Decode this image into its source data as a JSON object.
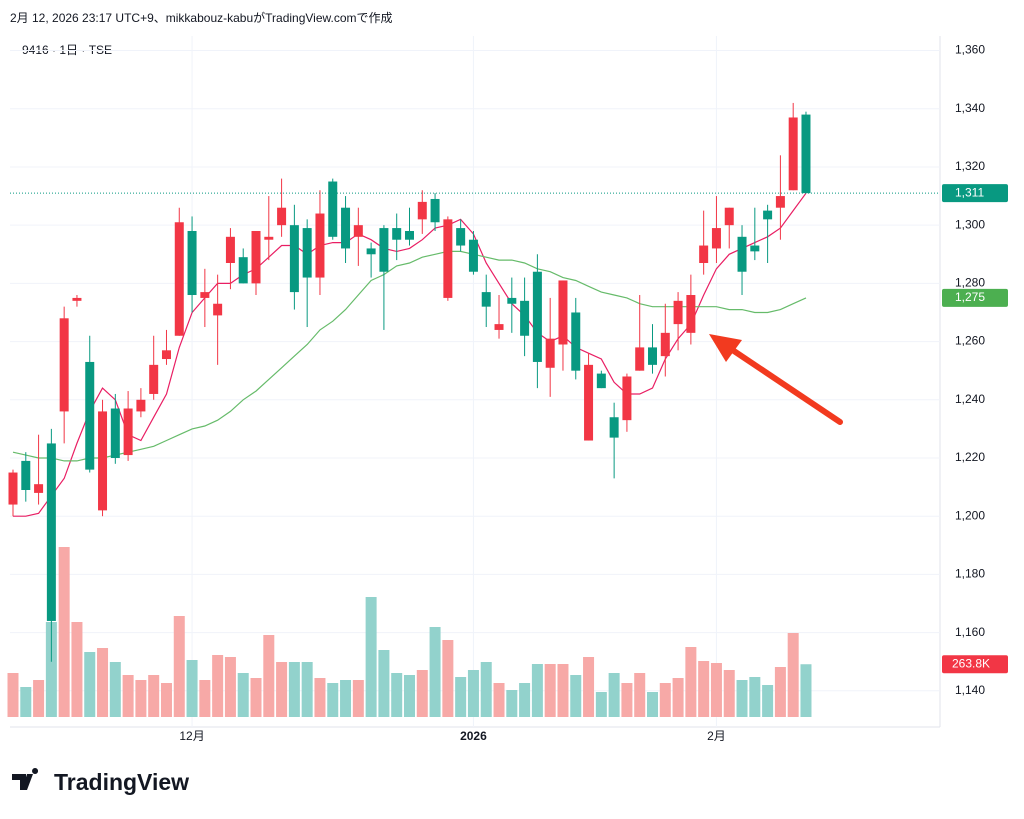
{
  "header": "2月 12, 2026 23:17 UTC+9、mikkabouz-kabuがTradingView.comで作成",
  "logo": "TradingView",
  "chart_data": {
    "type": "candlestick",
    "title": "9416 · 1日 · TSE",
    "up_color": "#f23645",
    "down_color": "#089981",
    "volume_up_color": "#f7a9a7",
    "volume_down_color": "#92d2cc",
    "ylim": [
      1131,
      1365
    ],
    "yticks": [
      {
        "value": 1140,
        "label": "1,140"
      },
      {
        "value": 1160,
        "label": "1,160"
      },
      {
        "value": 1180,
        "label": "1,180"
      },
      {
        "value": 1200,
        "label": "1,200"
      },
      {
        "value": 1220,
        "label": "1,220"
      },
      {
        "value": 1240,
        "label": "1,240"
      },
      {
        "value": 1260,
        "label": "1,260"
      },
      {
        "value": 1280,
        "label": "1,280"
      },
      {
        "value": 1300,
        "label": "1,300"
      },
      {
        "value": 1320,
        "label": "1,320"
      },
      {
        "value": 1340,
        "label": "1,340"
      },
      {
        "value": 1360,
        "label": "1,360"
      }
    ],
    "xticks": [
      {
        "value": 14,
        "label": "12月"
      },
      {
        "value": 36,
        "label": "2026"
      },
      {
        "value": 55,
        "label": "2月"
      }
    ],
    "grid": true,
    "candles": [
      [
        1204,
        1216,
        1200,
        1215
      ],
      [
        1219,
        1222,
        1205,
        1209
      ],
      [
        1208,
        1228,
        1204,
        1211
      ],
      [
        1225,
        1230,
        1150,
        1164
      ],
      [
        1236,
        1272,
        1225,
        1268
      ],
      [
        1274,
        1276,
        1272,
        1275
      ],
      [
        1253,
        1262,
        1215,
        1216
      ],
      [
        1202,
        1240,
        1200,
        1236
      ],
      [
        1237,
        1242,
        1218,
        1220
      ],
      [
        1221,
        1243,
        1219,
        1237
      ],
      [
        1236,
        1244,
        1234,
        1240
      ],
      [
        1242,
        1262,
        1240,
        1252
      ],
      [
        1254,
        1264,
        1252,
        1257
      ],
      [
        1262,
        1306,
        1262,
        1301
      ],
      [
        1298,
        1303,
        1270,
        1276
      ],
      [
        1275,
        1285,
        1265,
        1277
      ],
      [
        1269,
        1283,
        1252,
        1273
      ],
      [
        1287,
        1299,
        1278,
        1296
      ],
      [
        1289,
        1292,
        1280,
        1280
      ],
      [
        1280,
        1298,
        1276,
        1298
      ],
      [
        1295,
        1310,
        1288,
        1296
      ],
      [
        1300,
        1316,
        1296,
        1306
      ],
      [
        1300,
        1307,
        1271,
        1277
      ],
      [
        1299,
        1302,
        1265,
        1282
      ],
      [
        1282,
        1312,
        1276,
        1304
      ],
      [
        1315,
        1316,
        1295,
        1296
      ],
      [
        1306,
        1310,
        1287,
        1292
      ],
      [
        1296,
        1306,
        1286,
        1300
      ],
      [
        1292,
        1294,
        1282,
        1290
      ],
      [
        1299,
        1300,
        1264,
        1284
      ],
      [
        1299,
        1304,
        1288,
        1295
      ],
      [
        1298,
        1306,
        1293,
        1295
      ],
      [
        1302,
        1312,
        1297,
        1308
      ],
      [
        1309,
        1311,
        1298,
        1301
      ],
      [
        1275,
        1303,
        1274,
        1302
      ],
      [
        1299,
        1302,
        1291,
        1293
      ],
      [
        1295,
        1298,
        1283,
        1284
      ],
      [
        1277,
        1283,
        1265,
        1272
      ],
      [
        1264,
        1276,
        1261,
        1266
      ],
      [
        1275,
        1282,
        1263,
        1273
      ],
      [
        1274,
        1282,
        1255,
        1262
      ],
      [
        1284,
        1290,
        1244,
        1253
      ],
      [
        1251,
        1275,
        1241,
        1261
      ],
      [
        1259,
        1281,
        1250,
        1281
      ],
      [
        1270,
        1275,
        1247,
        1250
      ],
      [
        1226,
        1256,
        1226,
        1252
      ],
      [
        1249,
        1250,
        1244,
        1244
      ],
      [
        1234,
        1239,
        1213,
        1227
      ],
      [
        1233,
        1249,
        1229,
        1248
      ],
      [
        1250,
        1276,
        1250,
        1258
      ],
      [
        1258,
        1266,
        1249,
        1252
      ],
      [
        1255,
        1273,
        1248,
        1263
      ],
      [
        1266,
        1277,
        1257,
        1274
      ],
      [
        1263,
        1283,
        1259,
        1276
      ],
      [
        1287,
        1305,
        1283,
        1293
      ],
      [
        1292,
        1310,
        1287,
        1299
      ],
      [
        1300,
        1306,
        1292,
        1306
      ],
      [
        1296,
        1300,
        1276,
        1284
      ],
      [
        1293,
        1306,
        1288,
        1291
      ],
      [
        1305,
        1307,
        1287,
        1302
      ],
      [
        1306,
        1324,
        1295,
        1310
      ],
      [
        1312,
        1342,
        1312,
        1337
      ],
      [
        1338,
        1339,
        1311,
        1311
      ]
    ],
    "moving_averages": [
      {
        "color": "#e91e63",
        "values": [
          1200,
          1200,
          1201,
          1207,
          1213,
          1225,
          1236,
          1244,
          1240,
          1228,
          1226,
          1234,
          1242,
          1258,
          1270,
          1275,
          1280,
          1280,
          1283,
          1285,
          1289,
          1293,
          1293,
          1290,
          1293,
          1294,
          1294,
          1297,
          1295,
          1292,
          1291,
          1292,
          1295,
          1299,
          1300,
          1302,
          1297,
          1287,
          1280,
          1273,
          1269,
          1263,
          1260,
          1262,
          1258,
          1256,
          1254,
          1246,
          1242,
          1242,
          1244,
          1254,
          1261,
          1266,
          1276,
          1285,
          1290,
          1292,
          1294,
          1296,
          1299,
          1305,
          1311
        ]
      },
      {
        "color": "#66bb6a",
        "values": [
          1222,
          1221,
          1220,
          1220,
          1219,
          1219,
          1220,
          1220,
          1221,
          1222,
          1223,
          1224,
          1226,
          1228,
          1230,
          1231,
          1233,
          1236,
          1240,
          1243,
          1247,
          1251,
          1255,
          1259,
          1264,
          1267,
          1271,
          1276,
          1281,
          1283,
          1286,
          1287,
          1289,
          1290,
          1291,
          1291,
          1290,
          1289,
          1288,
          1288,
          1287,
          1285,
          1284,
          1282,
          1281,
          1279,
          1277,
          1276,
          1275,
          1273,
          1272,
          1272,
          1272,
          1272,
          1272,
          1272,
          1271,
          1271,
          1270,
          1270,
          1271,
          1273,
          1275
        ]
      }
    ],
    "volume": {
      "ylim": [
        0,
        850000
      ],
      "values": [
        220000,
        150000,
        185000,
        475000,
        850000,
        475000,
        325000,
        345000,
        275000,
        210000,
        185000,
        210000,
        170000,
        505000,
        285000,
        185000,
        310000,
        300000,
        220000,
        195000,
        410000,
        275000,
        275000,
        275000,
        195000,
        170000,
        185000,
        185000,
        600000,
        335000,
        220000,
        210000,
        235000,
        450000,
        385000,
        200000,
        235000,
        275000,
        170000,
        135000,
        170000,
        265000,
        265000,
        265000,
        210000,
        300000,
        125000,
        220000,
        170000,
        220000,
        125000,
        170000,
        195000,
        350000,
        280000,
        270000,
        235000,
        185000,
        200000,
        160000,
        250000,
        420000,
        263800
      ]
    },
    "price_tags": [
      {
        "value": 1311,
        "label": "1,311",
        "color": "#089981"
      },
      {
        "value": 1275,
        "label": "1,275",
        "color": "#4caf50"
      }
    ],
    "volume_tag": {
      "value": 263800,
      "label": "263.8K",
      "color": "#f23645"
    }
  }
}
